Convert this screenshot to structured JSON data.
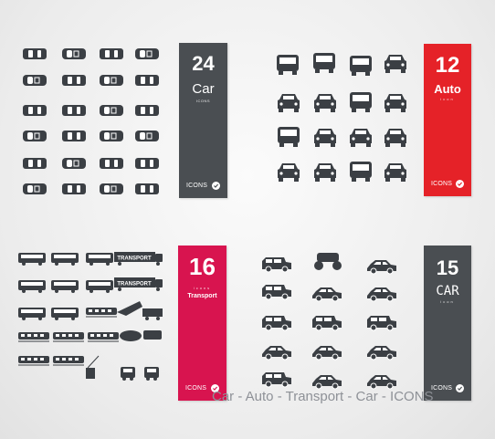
{
  "panels": {
    "car": {
      "number": "24",
      "word": "Car",
      "sub": "ICONS",
      "brand": "ICONS",
      "color": "#4a4e52"
    },
    "auto": {
      "number": "12",
      "word": "Auto",
      "sub": "icon",
      "brand": "ICONS",
      "color": "#e52228"
    },
    "transport": {
      "number": "16",
      "sub": "icons",
      "word": "Transport",
      "brand": "ICONS",
      "color": "#d8144f"
    },
    "car2": {
      "number": "15",
      "word": "CAR",
      "sub": "icon",
      "brand": "ICONS",
      "color": "#4a4e52"
    }
  },
  "transport_labels": {
    "truck1": "TRANSPORT",
    "truck2": "TRANSPORT"
  },
  "footer": "Car -  Auto - Transport - Car - ICONS",
  "icon_color": "#3b3f44"
}
